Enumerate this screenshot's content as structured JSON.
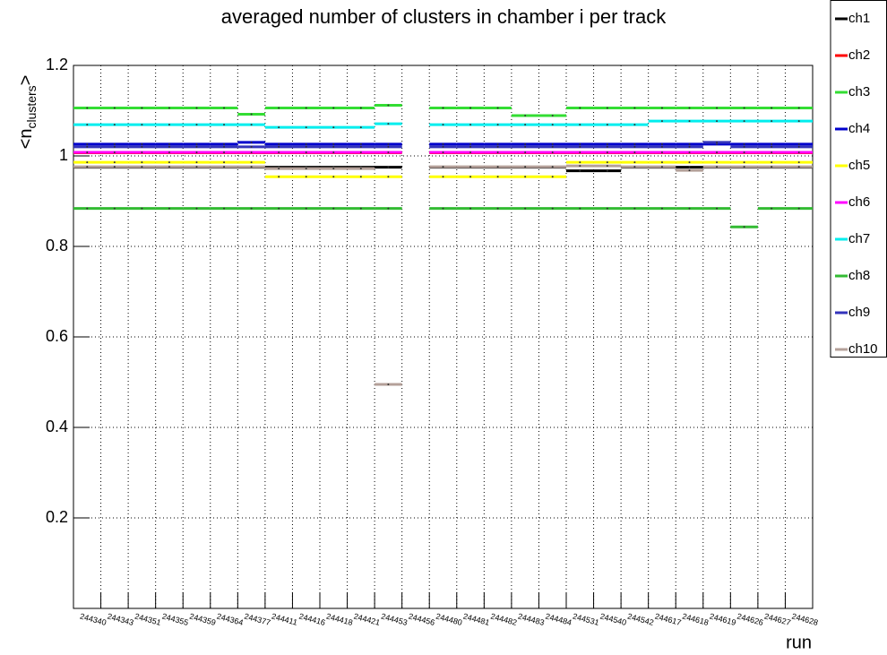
{
  "chart_data": {
    "type": "histogram-lines",
    "title": "averaged number of clusters in chamber i per track",
    "y_label": {
      "pre": "<n",
      "sub": "clusters",
      "post": ">"
    },
    "x_label": "run",
    "categories": [
      "244340",
      "244343",
      "244351",
      "244355",
      "244359",
      "244364",
      "244377",
      "244411",
      "244416",
      "244418",
      "244421",
      "244453",
      "244456",
      "244480",
      "244481",
      "244482",
      "244483",
      "244484",
      "244531",
      "244540",
      "244542",
      "244617",
      "244618",
      "244619",
      "244626",
      "244627",
      "244628"
    ],
    "ylim": [
      0,
      1.2
    ],
    "yticks": [
      0.2,
      0.4,
      0.6,
      0.8,
      1,
      1.2
    ],
    "grid": true,
    "legend": "right",
    "series": [
      {
        "name": "ch1",
        "color": "#000000",
        "values": [
          0.975,
          0.975,
          0.975,
          0.975,
          0.975,
          0.975,
          0.975,
          0.975,
          0.975,
          0.975,
          0.975,
          0.975,
          null,
          0.975,
          0.975,
          0.975,
          0.975,
          0.975,
          0.967,
          0.967,
          0.975,
          0.975,
          0.975,
          0.975,
          0.975,
          0.975,
          0.975
        ]
      },
      {
        "name": "ch2",
        "color": "#ff0000",
        "values": [
          1.007,
          1.007,
          1.007,
          1.007,
          1.007,
          1.007,
          1.007,
          1.007,
          1.007,
          1.007,
          1.007,
          1.007,
          null,
          1.007,
          1.007,
          1.007,
          1.007,
          1.007,
          1.007,
          1.007,
          1.007,
          1.007,
          1.007,
          1.007,
          1.007,
          1.007,
          1.007
        ]
      },
      {
        "name": "ch3",
        "color": "#33dd33",
        "values": [
          1.106,
          1.106,
          1.106,
          1.106,
          1.106,
          1.106,
          1.092,
          1.106,
          1.106,
          1.106,
          1.106,
          1.112,
          null,
          1.106,
          1.106,
          1.106,
          1.089,
          1.089,
          1.106,
          1.106,
          1.106,
          1.106,
          1.106,
          1.106,
          1.106,
          1.106,
          1.106
        ]
      },
      {
        "name": "ch4",
        "color": "#0000cc",
        "values": [
          1.026,
          1.026,
          1.026,
          1.026,
          1.026,
          1.026,
          1.03,
          1.026,
          1.026,
          1.026,
          1.026,
          1.026,
          null,
          1.026,
          1.026,
          1.026,
          1.026,
          1.026,
          1.026,
          1.026,
          1.026,
          1.026,
          1.026,
          1.026,
          1.026,
          1.026,
          1.026
        ]
      },
      {
        "name": "ch5",
        "color": "#ffff00",
        "values": [
          0.986,
          0.986,
          0.986,
          0.986,
          0.986,
          0.986,
          0.986,
          0.954,
          0.954,
          0.954,
          0.954,
          0.954,
          null,
          0.954,
          0.954,
          0.954,
          0.954,
          0.954,
          0.986,
          0.986,
          0.986,
          0.986,
          0.986,
          0.986,
          0.986,
          0.986,
          0.986
        ]
      },
      {
        "name": "ch6",
        "color": "#ff00ff",
        "values": [
          1.008,
          1.008,
          1.008,
          1.008,
          1.008,
          1.008,
          1.008,
          1.008,
          1.008,
          1.008,
          1.008,
          1.008,
          null,
          1.008,
          1.008,
          1.008,
          1.008,
          1.008,
          1.008,
          1.008,
          1.008,
          1.008,
          1.008,
          1.008,
          1.008,
          1.008,
          1.008
        ]
      },
      {
        "name": "ch7",
        "color": "#00eeee",
        "values": [
          1.069,
          1.069,
          1.069,
          1.069,
          1.069,
          1.069,
          1.069,
          1.063,
          1.063,
          1.063,
          1.063,
          1.071,
          null,
          1.069,
          1.069,
          1.069,
          1.069,
          1.069,
          1.069,
          1.069,
          1.069,
          1.077,
          1.077,
          1.077,
          1.077,
          1.077,
          1.077
        ]
      },
      {
        "name": "ch8",
        "color": "#33bb33",
        "values": [
          0.884,
          0.884,
          0.884,
          0.884,
          0.884,
          0.884,
          0.884,
          0.884,
          0.884,
          0.884,
          0.884,
          0.884,
          null,
          0.884,
          0.884,
          0.884,
          0.884,
          0.884,
          0.884,
          0.884,
          0.884,
          0.884,
          0.884,
          0.884,
          0.843,
          0.884,
          0.884
        ]
      },
      {
        "name": "ch9",
        "color": "#3333bb",
        "values": [
          1.02,
          1.02,
          1.02,
          1.02,
          1.02,
          1.02,
          1.02,
          1.02,
          1.02,
          1.02,
          1.02,
          1.02,
          null,
          1.02,
          1.02,
          1.02,
          1.02,
          1.02,
          1.02,
          1.02,
          1.02,
          1.02,
          1.02,
          1.03,
          1.02,
          1.02,
          1.02
        ]
      },
      {
        "name": "ch10",
        "color": "#b4a099",
        "values": [
          0.976,
          0.976,
          0.976,
          0.976,
          0.976,
          0.976,
          0.976,
          0.972,
          0.972,
          0.972,
          0.972,
          0.495,
          null,
          0.976,
          0.976,
          0.976,
          0.976,
          0.976,
          0.978,
          0.978,
          0.976,
          0.976,
          0.968,
          0.976,
          0.976,
          0.976,
          0.976
        ]
      }
    ]
  }
}
